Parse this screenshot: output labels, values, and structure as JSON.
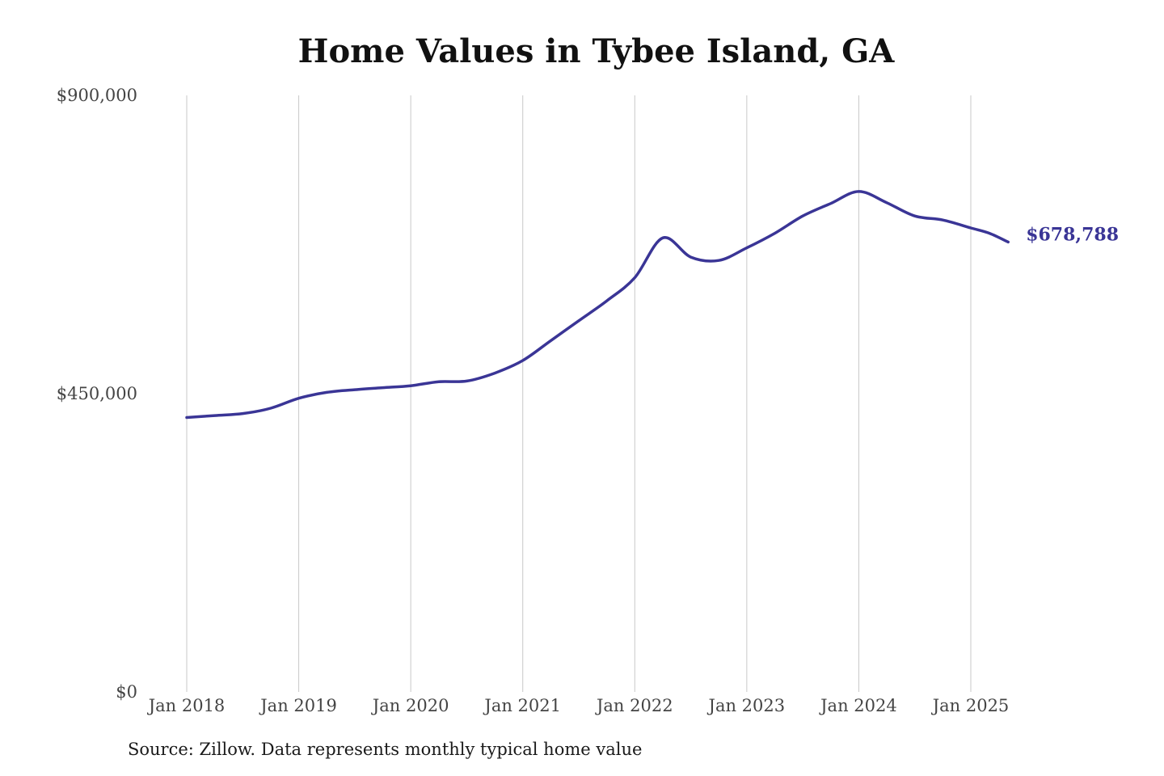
{
  "chart_data": {
    "type": "line",
    "title": "Home Values in Tybee Island, GA",
    "source_note": "Source: Zillow. Data represents monthly typical home value",
    "xlabel": "",
    "ylabel": "",
    "ylim": [
      0,
      900000
    ],
    "yticks": [
      0,
      450000,
      900000
    ],
    "ytick_labels": [
      "$0",
      "$450,000",
      "$900,000"
    ],
    "xlim": [
      "2018-01",
      "2025-05"
    ],
    "xticks": [
      "2018-01",
      "2019-01",
      "2020-01",
      "2021-01",
      "2022-01",
      "2023-01",
      "2024-01",
      "2025-01"
    ],
    "xtick_labels": [
      "Jan 2018",
      "Jan 2019",
      "Jan 2020",
      "Jan 2021",
      "Jan 2022",
      "Jan 2023",
      "Jan 2024",
      "Jan 2025"
    ],
    "grid": "vertical",
    "legend": "none",
    "line_color": "#3a3596",
    "end_label": "$678,788",
    "series": [
      {
        "x": [
          "2018-01",
          "2018-04",
          "2018-07",
          "2018-10",
          "2019-01",
          "2019-04",
          "2019-07",
          "2019-10",
          "2020-01",
          "2020-04",
          "2020-07",
          "2020-10",
          "2021-01",
          "2021-04",
          "2021-07",
          "2021-10",
          "2022-01",
          "2022-04",
          "2022-07",
          "2022-10",
          "2023-01",
          "2023-04",
          "2023-07",
          "2023-10",
          "2024-01",
          "2024-04",
          "2024-07",
          "2024-10",
          "2025-01",
          "2025-03",
          "2025-05"
        ],
        "values": [
          414000,
          417000,
          420000,
          428000,
          443000,
          452000,
          456000,
          459000,
          462000,
          468000,
          469000,
          481000,
          500000,
          530000,
          560000,
          590000,
          625000,
          685000,
          656000,
          651000,
          670000,
          692000,
          718000,
          737000,
          755000,
          738000,
          718000,
          712000,
          700000,
          692000,
          678788
        ]
      }
    ]
  }
}
